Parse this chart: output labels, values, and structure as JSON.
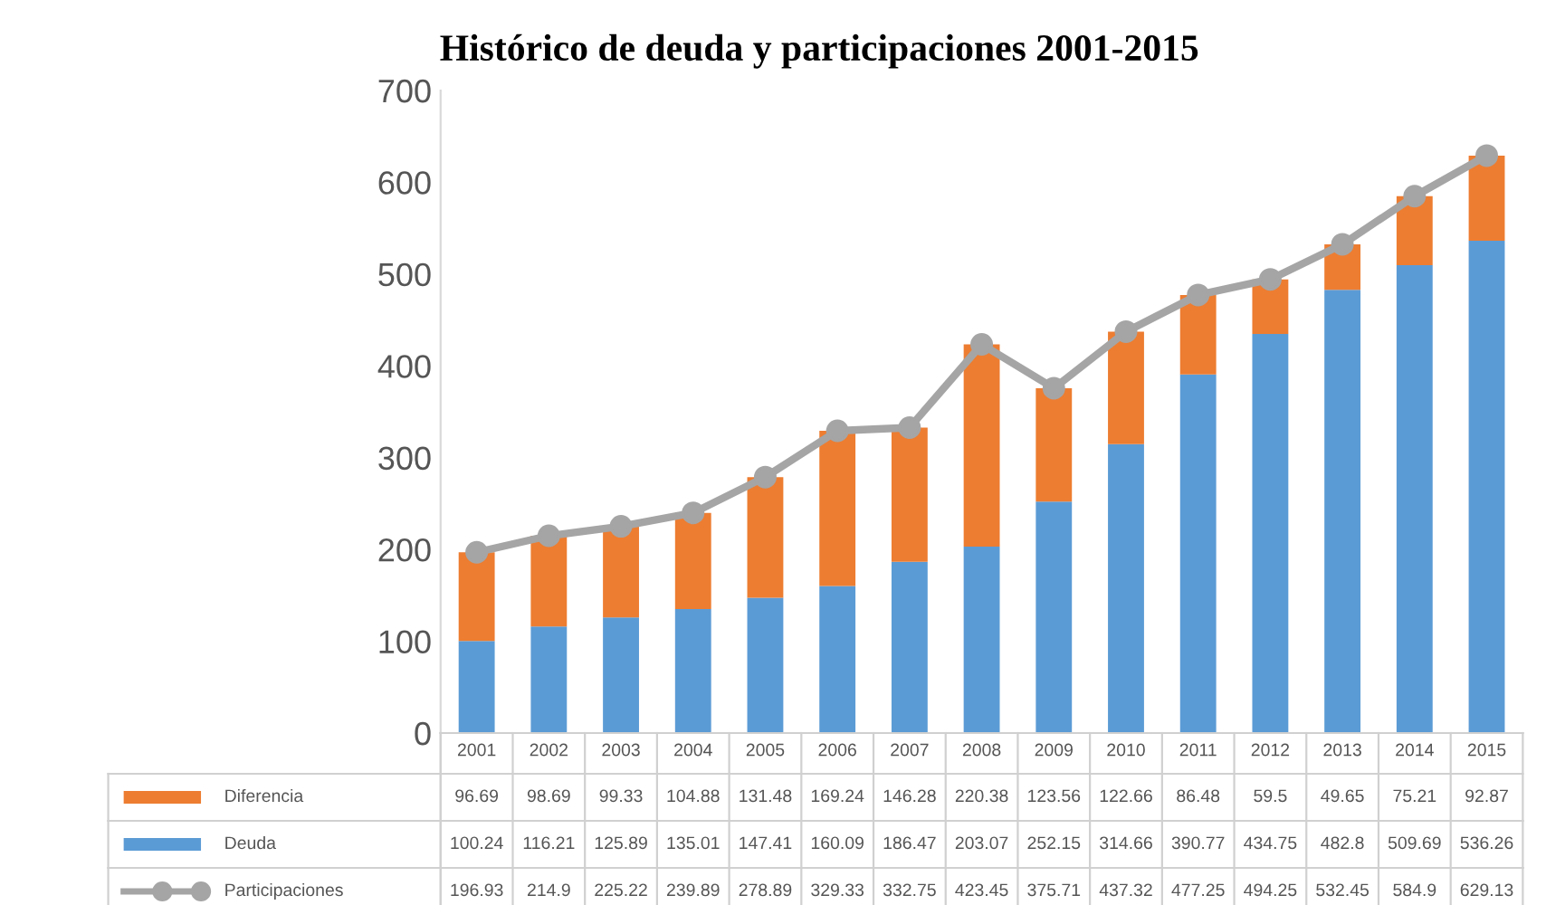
{
  "chart_data": {
    "type": "bar",
    "title": "Histórico de deuda y participaciones 2001-2015",
    "categories": [
      "2001",
      "2002",
      "2003",
      "2004",
      "2005",
      "2006",
      "2007",
      "2008",
      "2009",
      "2010",
      "2011",
      "2012",
      "2013",
      "2014",
      "2015"
    ],
    "stacked": true,
    "series": [
      {
        "name": "Deuda",
        "color": "#5b9bd5",
        "values": [
          100.24,
          116.21,
          125.89,
          135.01,
          147.41,
          160.09,
          186.47,
          203.07,
          252.15,
          314.66,
          390.77,
          434.75,
          482.8,
          509.69,
          536.26
        ]
      },
      {
        "name": "Diferencia",
        "color": "#ed7d31",
        "values": [
          96.69,
          98.69,
          99.33,
          104.88,
          131.48,
          169.24,
          146.28,
          220.38,
          123.56,
          122.66,
          86.48,
          59.5,
          49.65,
          75.21,
          92.87
        ]
      },
      {
        "name": "Participaciones",
        "type": "line",
        "color": "#a5a5a5",
        "marker": "circle",
        "values": [
          196.93,
          214.9,
          225.22,
          239.89,
          278.89,
          329.33,
          332.75,
          423.45,
          375.71,
          437.32,
          477.25,
          494.25,
          532.45,
          584.9,
          629.13
        ]
      }
    ],
    "ylim": [
      0,
      700
    ],
    "yticks": [
      0,
      100,
      200,
      300,
      400,
      500,
      600,
      700
    ],
    "data_labels": true,
    "legend": "bottom",
    "grid": false
  }
}
